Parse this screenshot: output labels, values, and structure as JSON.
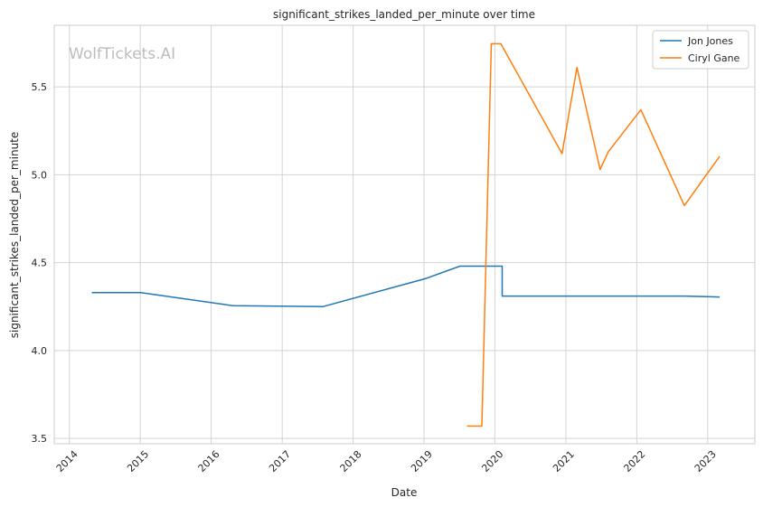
{
  "watermark": "WolfTickets.AI",
  "chart_data": {
    "type": "line",
    "title": "significant_strikes_landed_per_minute over time",
    "xlabel": "Date",
    "ylabel": "significant_strikes_landed_per_minute",
    "xlim": [
      "2013-10-15",
      "2023-09-01"
    ],
    "ylim": [
      3.47,
      5.85
    ],
    "x_ticks": [
      "2014-01-01",
      "2015-01-01",
      "2016-01-01",
      "2017-01-01",
      "2018-01-01",
      "2019-01-01",
      "2020-01-01",
      "2021-01-01",
      "2022-01-01",
      "2023-01-01"
    ],
    "x_tick_labels": [
      "2014",
      "2015",
      "2016",
      "2017",
      "2018",
      "2019",
      "2020",
      "2021",
      "2022",
      "2023"
    ],
    "y_ticks": [
      3.5,
      4.0,
      4.5,
      5.0,
      5.5
    ],
    "y_tick_labels": [
      "3.5",
      "4.0",
      "4.5",
      "5.0",
      "5.5"
    ],
    "grid": true,
    "legend_position": "top-right",
    "series": [
      {
        "name": "Jon Jones",
        "color": "#1f77b4",
        "x": [
          "2014-04-26",
          "2015-01-03",
          "2016-04-23",
          "2017-07-29",
          "2019-01-12",
          "2019-07-06",
          "2020-02-08",
          "2020-02-08",
          "2022-09-01",
          "2023-03-04"
        ],
        "y": [
          4.33,
          4.33,
          4.255,
          4.25,
          4.41,
          4.48,
          4.48,
          4.31,
          4.31,
          4.305
        ]
      },
      {
        "name": "Ciryl Gane",
        "color": "#ff7f0e",
        "x": [
          "2019-08-10",
          "2019-10-26",
          "2019-12-14",
          "2020-02-01",
          "2020-12-12",
          "2021-02-27",
          "2021-06-26",
          "2021-08-07",
          "2022-01-22",
          "2022-09-03",
          "2023-03-04"
        ],
        "y": [
          3.57,
          3.57,
          5.745,
          5.745,
          5.12,
          5.61,
          5.03,
          5.13,
          5.37,
          4.825,
          5.105
        ]
      }
    ]
  }
}
